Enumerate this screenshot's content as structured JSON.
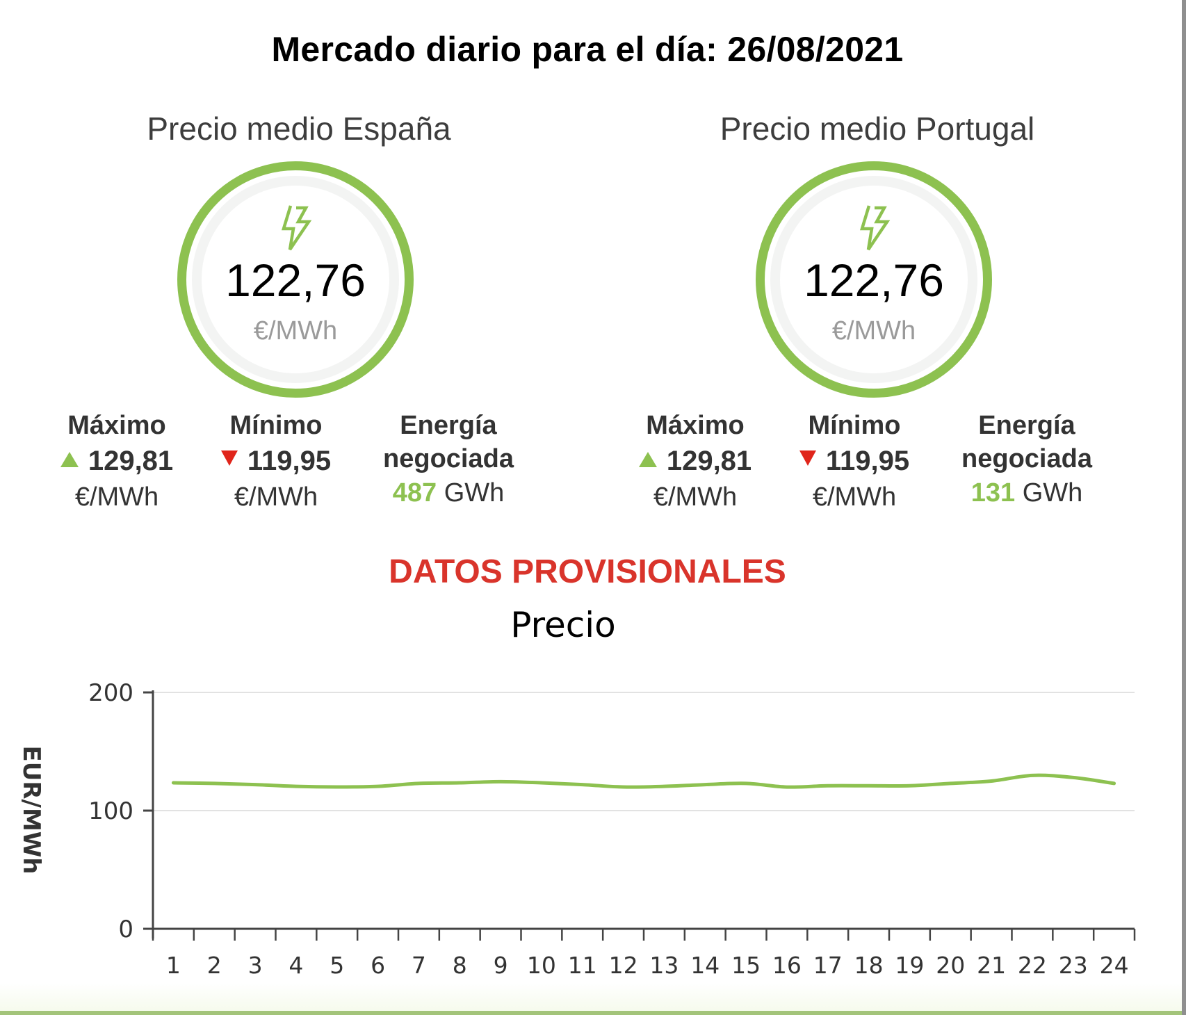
{
  "header": {
    "title": "Mercado diario para el día: 26/08/2021"
  },
  "markets": [
    {
      "id": "es",
      "title": "Precio medio España",
      "average": "122,76",
      "average_unit": "€/MWh",
      "max_label": "Máximo",
      "max_value": "129,81",
      "max_unit": "€/MWh",
      "min_label": "Mínimo",
      "min_value": "119,95",
      "min_unit": "€/MWh",
      "energy_label_1": "Energía",
      "energy_label_2": "negociada",
      "energy_value": "487",
      "energy_unit": "GWh"
    },
    {
      "id": "pt",
      "title": "Precio medio Portugal",
      "average": "122,76",
      "average_unit": "€/MWh",
      "max_label": "Máximo",
      "max_value": "129,81",
      "max_unit": "€/MWh",
      "min_label": "Mínimo",
      "min_value": "119,95",
      "min_unit": "€/MWh",
      "energy_label_1": "Energía",
      "energy_label_2": "negociada",
      "energy_value": "131",
      "energy_unit": "GWh"
    }
  ],
  "notice": "DATOS PROVISIONALES",
  "icons": {
    "average": "lightning-bolt-icon",
    "max": "triangle-up-icon",
    "min": "triangle-down-icon"
  },
  "colors": {
    "accent_green": "#8dc150",
    "notice_red": "#d9342b",
    "min_red": "#e0251b",
    "line": "#8dc150",
    "bottom_bar": "#a3c47a"
  },
  "chart_data": {
    "type": "line",
    "title": "Precio",
    "xlabel": "",
    "ylabel": "EUR/MWh",
    "ylim": [
      0,
      200
    ],
    "yticks": [
      0,
      100,
      200
    ],
    "grid": true,
    "legend": null,
    "categories": [
      "1",
      "2",
      "3",
      "4",
      "5",
      "6",
      "7",
      "8",
      "9",
      "10",
      "11",
      "12",
      "13",
      "14",
      "15",
      "16",
      "17",
      "18",
      "19",
      "20",
      "21",
      "22",
      "23",
      "24"
    ],
    "series": [
      {
        "name": "Precio",
        "values": [
          123.5,
          123.0,
          122.0,
          120.5,
          120.0,
          120.5,
          123.0,
          123.5,
          124.5,
          123.5,
          122.0,
          120.0,
          120.5,
          122.0,
          123.0,
          119.95,
          121.0,
          121.0,
          121.0,
          123.0,
          125.0,
          129.81,
          128.0,
          123.0
        ]
      }
    ]
  }
}
